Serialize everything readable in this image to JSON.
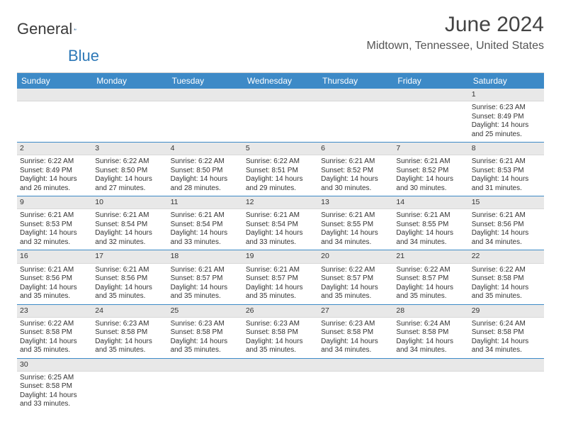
{
  "brand": {
    "part1": "General",
    "part2": "Blue"
  },
  "title": "June 2024",
  "location": "Midtown, Tennessee, United States",
  "colors": {
    "header_bg": "#3d8ac7",
    "header_text": "#ffffff",
    "row_divider": "#3d8ac7",
    "daynum_bg": "#e8e8e8",
    "brand_blue": "#2e79b8",
    "text": "#333333"
  },
  "day_names": [
    "Sunday",
    "Monday",
    "Tuesday",
    "Wednesday",
    "Thursday",
    "Friday",
    "Saturday"
  ],
  "weeks": [
    [
      {
        "n": "",
        "sunrise": "",
        "sunset": "",
        "daylight": ""
      },
      {
        "n": "",
        "sunrise": "",
        "sunset": "",
        "daylight": ""
      },
      {
        "n": "",
        "sunrise": "",
        "sunset": "",
        "daylight": ""
      },
      {
        "n": "",
        "sunrise": "",
        "sunset": "",
        "daylight": ""
      },
      {
        "n": "",
        "sunrise": "",
        "sunset": "",
        "daylight": ""
      },
      {
        "n": "",
        "sunrise": "",
        "sunset": "",
        "daylight": ""
      },
      {
        "n": "1",
        "sunrise": "Sunrise: 6:23 AM",
        "sunset": "Sunset: 8:49 PM",
        "daylight": "Daylight: 14 hours and 25 minutes."
      }
    ],
    [
      {
        "n": "2",
        "sunrise": "Sunrise: 6:22 AM",
        "sunset": "Sunset: 8:49 PM",
        "daylight": "Daylight: 14 hours and 26 minutes."
      },
      {
        "n": "3",
        "sunrise": "Sunrise: 6:22 AM",
        "sunset": "Sunset: 8:50 PM",
        "daylight": "Daylight: 14 hours and 27 minutes."
      },
      {
        "n": "4",
        "sunrise": "Sunrise: 6:22 AM",
        "sunset": "Sunset: 8:50 PM",
        "daylight": "Daylight: 14 hours and 28 minutes."
      },
      {
        "n": "5",
        "sunrise": "Sunrise: 6:22 AM",
        "sunset": "Sunset: 8:51 PM",
        "daylight": "Daylight: 14 hours and 29 minutes."
      },
      {
        "n": "6",
        "sunrise": "Sunrise: 6:21 AM",
        "sunset": "Sunset: 8:52 PM",
        "daylight": "Daylight: 14 hours and 30 minutes."
      },
      {
        "n": "7",
        "sunrise": "Sunrise: 6:21 AM",
        "sunset": "Sunset: 8:52 PM",
        "daylight": "Daylight: 14 hours and 30 minutes."
      },
      {
        "n": "8",
        "sunrise": "Sunrise: 6:21 AM",
        "sunset": "Sunset: 8:53 PM",
        "daylight": "Daylight: 14 hours and 31 minutes."
      }
    ],
    [
      {
        "n": "9",
        "sunrise": "Sunrise: 6:21 AM",
        "sunset": "Sunset: 8:53 PM",
        "daylight": "Daylight: 14 hours and 32 minutes."
      },
      {
        "n": "10",
        "sunrise": "Sunrise: 6:21 AM",
        "sunset": "Sunset: 8:54 PM",
        "daylight": "Daylight: 14 hours and 32 minutes."
      },
      {
        "n": "11",
        "sunrise": "Sunrise: 6:21 AM",
        "sunset": "Sunset: 8:54 PM",
        "daylight": "Daylight: 14 hours and 33 minutes."
      },
      {
        "n": "12",
        "sunrise": "Sunrise: 6:21 AM",
        "sunset": "Sunset: 8:54 PM",
        "daylight": "Daylight: 14 hours and 33 minutes."
      },
      {
        "n": "13",
        "sunrise": "Sunrise: 6:21 AM",
        "sunset": "Sunset: 8:55 PM",
        "daylight": "Daylight: 14 hours and 34 minutes."
      },
      {
        "n": "14",
        "sunrise": "Sunrise: 6:21 AM",
        "sunset": "Sunset: 8:55 PM",
        "daylight": "Daylight: 14 hours and 34 minutes."
      },
      {
        "n": "15",
        "sunrise": "Sunrise: 6:21 AM",
        "sunset": "Sunset: 8:56 PM",
        "daylight": "Daylight: 14 hours and 34 minutes."
      }
    ],
    [
      {
        "n": "16",
        "sunrise": "Sunrise: 6:21 AM",
        "sunset": "Sunset: 8:56 PM",
        "daylight": "Daylight: 14 hours and 35 minutes."
      },
      {
        "n": "17",
        "sunrise": "Sunrise: 6:21 AM",
        "sunset": "Sunset: 8:56 PM",
        "daylight": "Daylight: 14 hours and 35 minutes."
      },
      {
        "n": "18",
        "sunrise": "Sunrise: 6:21 AM",
        "sunset": "Sunset: 8:57 PM",
        "daylight": "Daylight: 14 hours and 35 minutes."
      },
      {
        "n": "19",
        "sunrise": "Sunrise: 6:21 AM",
        "sunset": "Sunset: 8:57 PM",
        "daylight": "Daylight: 14 hours and 35 minutes."
      },
      {
        "n": "20",
        "sunrise": "Sunrise: 6:22 AM",
        "sunset": "Sunset: 8:57 PM",
        "daylight": "Daylight: 14 hours and 35 minutes."
      },
      {
        "n": "21",
        "sunrise": "Sunrise: 6:22 AM",
        "sunset": "Sunset: 8:57 PM",
        "daylight": "Daylight: 14 hours and 35 minutes."
      },
      {
        "n": "22",
        "sunrise": "Sunrise: 6:22 AM",
        "sunset": "Sunset: 8:58 PM",
        "daylight": "Daylight: 14 hours and 35 minutes."
      }
    ],
    [
      {
        "n": "23",
        "sunrise": "Sunrise: 6:22 AM",
        "sunset": "Sunset: 8:58 PM",
        "daylight": "Daylight: 14 hours and 35 minutes."
      },
      {
        "n": "24",
        "sunrise": "Sunrise: 6:23 AM",
        "sunset": "Sunset: 8:58 PM",
        "daylight": "Daylight: 14 hours and 35 minutes."
      },
      {
        "n": "25",
        "sunrise": "Sunrise: 6:23 AM",
        "sunset": "Sunset: 8:58 PM",
        "daylight": "Daylight: 14 hours and 35 minutes."
      },
      {
        "n": "26",
        "sunrise": "Sunrise: 6:23 AM",
        "sunset": "Sunset: 8:58 PM",
        "daylight": "Daylight: 14 hours and 35 minutes."
      },
      {
        "n": "27",
        "sunrise": "Sunrise: 6:23 AM",
        "sunset": "Sunset: 8:58 PM",
        "daylight": "Daylight: 14 hours and 34 minutes."
      },
      {
        "n": "28",
        "sunrise": "Sunrise: 6:24 AM",
        "sunset": "Sunset: 8:58 PM",
        "daylight": "Daylight: 14 hours and 34 minutes."
      },
      {
        "n": "29",
        "sunrise": "Sunrise: 6:24 AM",
        "sunset": "Sunset: 8:58 PM",
        "daylight": "Daylight: 14 hours and 34 minutes."
      }
    ],
    [
      {
        "n": "30",
        "sunrise": "Sunrise: 6:25 AM",
        "sunset": "Sunset: 8:58 PM",
        "daylight": "Daylight: 14 hours and 33 minutes."
      },
      {
        "n": "",
        "sunrise": "",
        "sunset": "",
        "daylight": ""
      },
      {
        "n": "",
        "sunrise": "",
        "sunset": "",
        "daylight": ""
      },
      {
        "n": "",
        "sunrise": "",
        "sunset": "",
        "daylight": ""
      },
      {
        "n": "",
        "sunrise": "",
        "sunset": "",
        "daylight": ""
      },
      {
        "n": "",
        "sunrise": "",
        "sunset": "",
        "daylight": ""
      },
      {
        "n": "",
        "sunrise": "",
        "sunset": "",
        "daylight": ""
      }
    ]
  ]
}
